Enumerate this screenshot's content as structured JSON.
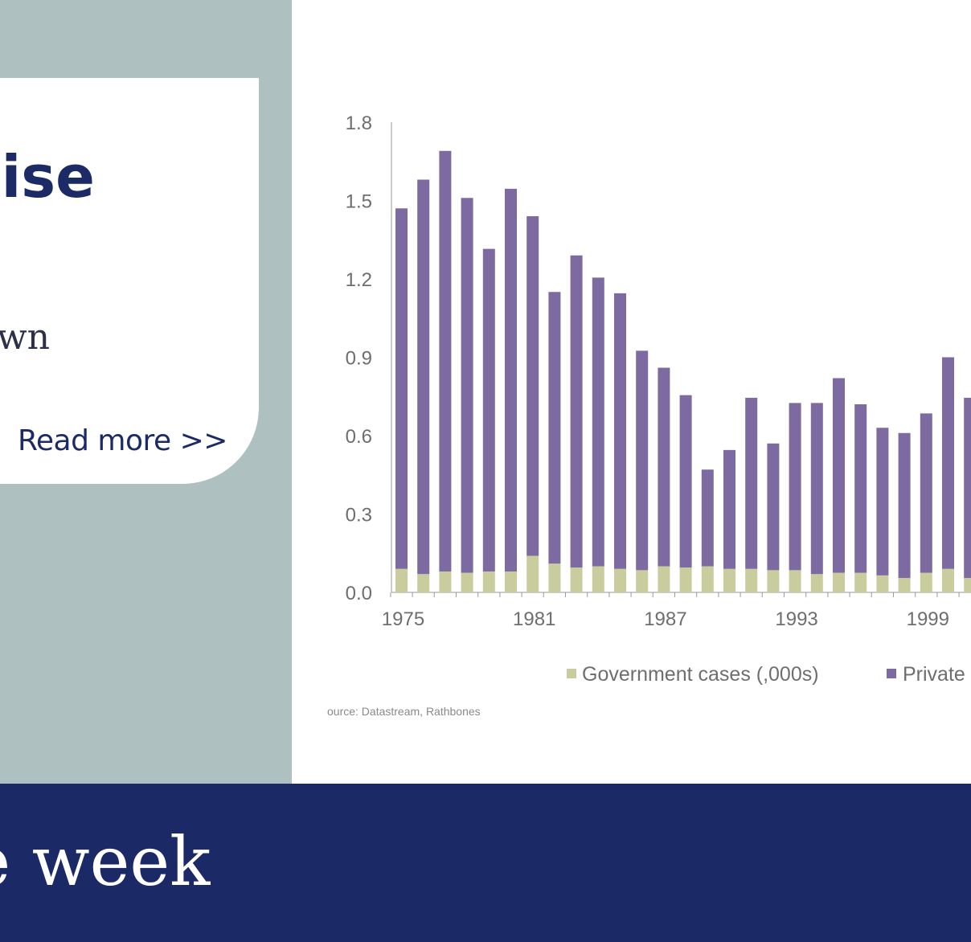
{
  "card": {
    "title": "oise",
    "subtitle": "wn",
    "read_more": "Read more >>"
  },
  "footer": {
    "title": "e week"
  },
  "colors": {
    "panel_bg": "#aec0bf",
    "navy": "#1b2966",
    "private_bar": "#7d6aa0",
    "government_bar": "#c9cd9d"
  },
  "chart_data": {
    "type": "bar",
    "stacked": true,
    "x": [
      1975,
      1976,
      1977,
      1978,
      1979,
      1980,
      1981,
      1982,
      1983,
      1984,
      1985,
      1986,
      1987,
      1988,
      1989,
      1990,
      1991,
      1992,
      1993,
      1994,
      1995,
      1996,
      1997,
      1998,
      1999,
      2000,
      2001
    ],
    "series": [
      {
        "name": "Government cases (,000s)",
        "values": [
          0.09,
          0.07,
          0.08,
          0.075,
          0.08,
          0.08,
          0.14,
          0.11,
          0.095,
          0.1,
          0.09,
          0.085,
          0.1,
          0.095,
          0.1,
          0.09,
          0.09,
          0.085,
          0.085,
          0.07,
          0.075,
          0.075,
          0.065,
          0.055,
          0.075,
          0.09,
          0.055
        ]
      },
      {
        "name": "Private",
        "values": [
          1.38,
          1.51,
          1.61,
          1.435,
          1.235,
          1.465,
          1.3,
          1.04,
          1.195,
          1.105,
          1.055,
          0.84,
          0.76,
          0.66,
          0.37,
          0.455,
          0.655,
          0.485,
          0.64,
          0.655,
          0.745,
          0.645,
          0.565,
          0.555,
          0.61,
          0.81,
          0.69
        ]
      }
    ],
    "totals_note_hidden": false,
    "ylim": [
      0,
      1.8
    ],
    "yticks": [
      "0.0",
      "0.3",
      "0.6",
      "0.9",
      "1.2",
      "1.5",
      "1.8"
    ],
    "xtick_labels": [
      "1975",
      "1981",
      "1987",
      "1993",
      "1999"
    ],
    "legend": {
      "placement": "bottom",
      "items": [
        "Government cases (,000s)",
        "Private"
      ]
    },
    "source": "ource: Datastream, Rathbones"
  }
}
